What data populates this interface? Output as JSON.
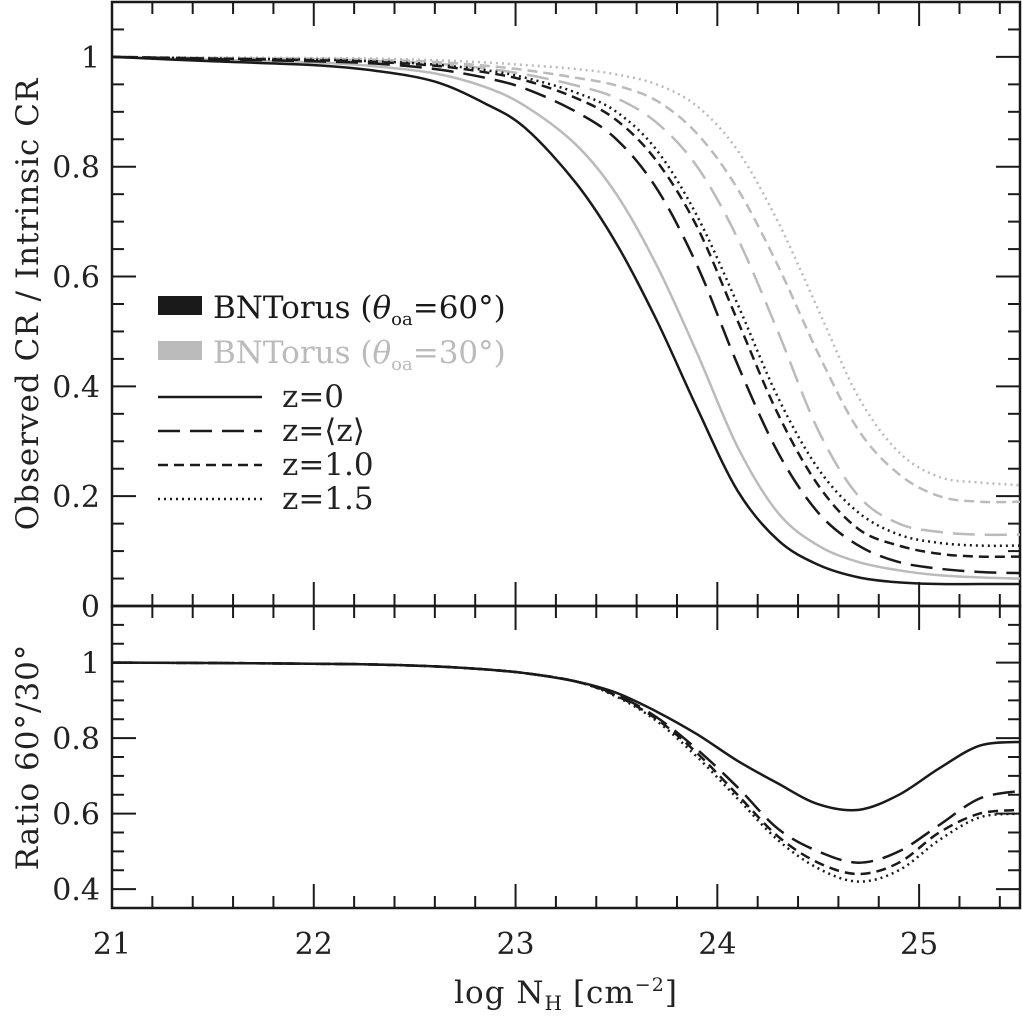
{
  "chart_data": {
    "type": "line",
    "xlabel": "log N",
    "xlabel_sub": "H",
    "xlabel_unit": "[cm",
    "xlabel_unit_sup": "−2",
    "xlabel_unit_end": "]",
    "xlim": [
      21,
      25.5
    ],
    "xticks": [
      21,
      22,
      23,
      24,
      25
    ],
    "x_tick_labels": [
      "21",
      "22",
      "23",
      "24",
      "25"
    ],
    "x": [
      21.0,
      21.5,
      22.0,
      22.3,
      22.6,
      22.85,
      23.05,
      23.3,
      23.5,
      23.7,
      23.9,
      24.1,
      24.3,
      24.5,
      24.7,
      24.9,
      25.1,
      25.3,
      25.5
    ],
    "top_panel": {
      "ylabel": "Observed CR / Intrinsic CR",
      "ylim": [
        0,
        1.1
      ],
      "yticks": [
        0,
        0.2,
        0.4,
        0.6,
        0.8,
        1
      ],
      "y_tick_labels": [
        "0",
        "0.2",
        "0.4",
        "0.6",
        "0.8",
        "1"
      ],
      "series": [
        {
          "name": "z=0 (60°)",
          "group": "60",
          "dash": "solid",
          "color": "#1a1a1a",
          "values": [
            1.0,
            0.992,
            0.985,
            0.975,
            0.955,
            0.915,
            0.87,
            0.77,
            0.66,
            0.52,
            0.36,
            0.21,
            0.12,
            0.075,
            0.052,
            0.043,
            0.04,
            0.04,
            0.04
          ]
        },
        {
          "name": "z=0 (30°)",
          "group": "30",
          "dash": "solid",
          "color": "#bbbbbb",
          "values": [
            1.0,
            0.995,
            0.99,
            0.983,
            0.97,
            0.945,
            0.91,
            0.84,
            0.75,
            0.62,
            0.46,
            0.29,
            0.17,
            0.11,
            0.08,
            0.065,
            0.056,
            0.052,
            0.05
          ]
        },
        {
          "name": "z=<z> (60°)",
          "group": "60",
          "dash": "longdash",
          "color": "#1a1a1a",
          "values": [
            1.0,
            0.996,
            0.992,
            0.988,
            0.978,
            0.962,
            0.942,
            0.9,
            0.85,
            0.76,
            0.62,
            0.44,
            0.28,
            0.17,
            0.11,
            0.08,
            0.068,
            0.062,
            0.06
          ]
        },
        {
          "name": "z=1.0 (60°)",
          "group": "60",
          "dash": "shortdash",
          "color": "#1a1a1a",
          "values": [
            1.0,
            0.997,
            0.994,
            0.991,
            0.984,
            0.972,
            0.957,
            0.925,
            0.885,
            0.81,
            0.69,
            0.52,
            0.35,
            0.22,
            0.14,
            0.11,
            0.095,
            0.09,
            0.09
          ]
        },
        {
          "name": "z=1.5 (60°)",
          "group": "60",
          "dash": "dotted",
          "color": "#1a1a1a",
          "values": [
            1.0,
            0.997,
            0.995,
            0.992,
            0.986,
            0.976,
            0.962,
            0.935,
            0.9,
            0.83,
            0.71,
            0.55,
            0.38,
            0.25,
            0.17,
            0.13,
            0.115,
            0.11,
            0.11
          ]
        },
        {
          "name": "z=<z> (30°)",
          "group": "30",
          "dash": "longdash",
          "color": "#bbbbbb",
          "values": [
            1.0,
            0.998,
            0.996,
            0.993,
            0.988,
            0.979,
            0.968,
            0.948,
            0.925,
            0.88,
            0.8,
            0.67,
            0.5,
            0.32,
            0.2,
            0.15,
            0.135,
            0.13,
            0.13
          ]
        },
        {
          "name": "z=1.0 (30°)",
          "group": "30",
          "dash": "shortdash",
          "color": "#bbbbbb",
          "values": [
            1.0,
            0.998,
            0.997,
            0.995,
            0.991,
            0.984,
            0.976,
            0.962,
            0.948,
            0.92,
            0.86,
            0.76,
            0.62,
            0.46,
            0.32,
            0.24,
            0.2,
            0.19,
            0.19
          ]
        },
        {
          "name": "z=1.5 (30°)",
          "group": "30",
          "dash": "dotted",
          "color": "#bbbbbb",
          "values": [
            1.0,
            0.999,
            0.998,
            0.997,
            0.994,
            0.99,
            0.985,
            0.978,
            0.968,
            0.95,
            0.91,
            0.83,
            0.7,
            0.54,
            0.38,
            0.28,
            0.235,
            0.225,
            0.22
          ]
        }
      ]
    },
    "bottom_panel": {
      "ylabel": "Ratio 60°/30°",
      "ylim": [
        0.35,
        1.15
      ],
      "yticks": [
        0.4,
        0.6,
        0.8,
        1
      ],
      "y_tick_labels": [
        "0.4",
        "0.6",
        "0.8",
        "1"
      ],
      "series": [
        {
          "name": "z=0",
          "dash": "solid",
          "values": [
            1.0,
            0.999,
            0.997,
            0.995,
            0.99,
            0.982,
            0.972,
            0.95,
            0.92,
            0.87,
            0.81,
            0.74,
            0.68,
            0.625,
            0.61,
            0.65,
            0.72,
            0.78,
            0.79
          ]
        },
        {
          "name": "z=<z>",
          "dash": "longdash",
          "values": [
            1.0,
            0.999,
            0.997,
            0.995,
            0.99,
            0.982,
            0.972,
            0.95,
            0.915,
            0.855,
            0.77,
            0.67,
            0.56,
            0.5,
            0.47,
            0.5,
            0.57,
            0.64,
            0.66
          ]
        },
        {
          "name": "z=1.0",
          "dash": "shortdash",
          "values": [
            1.0,
            0.999,
            0.997,
            0.995,
            0.99,
            0.982,
            0.972,
            0.95,
            0.912,
            0.85,
            0.76,
            0.65,
            0.54,
            0.47,
            0.44,
            0.47,
            0.55,
            0.6,
            0.61
          ]
        },
        {
          "name": "z=1.5",
          "dash": "dotted",
          "values": [
            1.0,
            0.999,
            0.997,
            0.995,
            0.99,
            0.982,
            0.972,
            0.95,
            0.91,
            0.845,
            0.75,
            0.64,
            0.53,
            0.455,
            0.42,
            0.45,
            0.53,
            0.59,
            0.6
          ]
        }
      ]
    },
    "legend": {
      "placement": "middle-left",
      "models": [
        {
          "label": "BNTorus (",
          "theta": "θ",
          "sub": "oa",
          "value": "=60°)",
          "color": "#1a1a1a"
        },
        {
          "label": "BNTorus (",
          "theta": "θ",
          "sub": "oa",
          "value": "=30°)",
          "color": "#bbbbbb"
        }
      ],
      "styles": [
        {
          "label": "z=0",
          "dash": "solid"
        },
        {
          "label": "z=⟨z⟩",
          "dash": "longdash"
        },
        {
          "label": "z=1.0",
          "dash": "shortdash"
        },
        {
          "label": "z=1.5",
          "dash": "dotted"
        }
      ]
    }
  }
}
